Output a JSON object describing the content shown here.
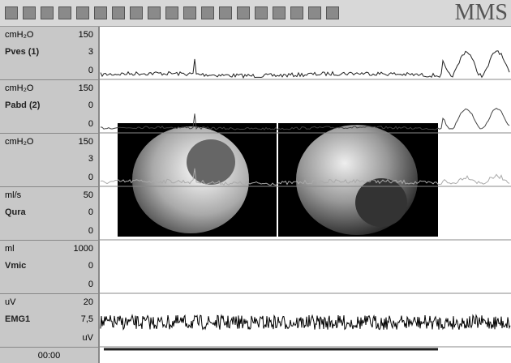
{
  "toolbar": {
    "logo": "MMS"
  },
  "channels": [
    {
      "unit": "cmH₂O",
      "max": "150",
      "name": "Pves (1)",
      "current": "3",
      "min": "0"
    },
    {
      "unit": "cmH₂O",
      "max": "150",
      "name": "Pabd (2)",
      "current": "0",
      "min": "0"
    },
    {
      "unit": "cmH₂O",
      "max": "150",
      "current": "3",
      "min": "0"
    },
    {
      "unit": "ml/s",
      "max": "50",
      "name": "Qura",
      "current": "0",
      "min": "0"
    },
    {
      "unit": "ml",
      "max": "1000",
      "name": "Vmic",
      "current": "0",
      "min": "0"
    },
    {
      "unit": "uV",
      "max": "20",
      "name": "EMG1",
      "current": "7,5",
      "min": "uV"
    }
  ],
  "footer": {
    "time": "00:00"
  }
}
